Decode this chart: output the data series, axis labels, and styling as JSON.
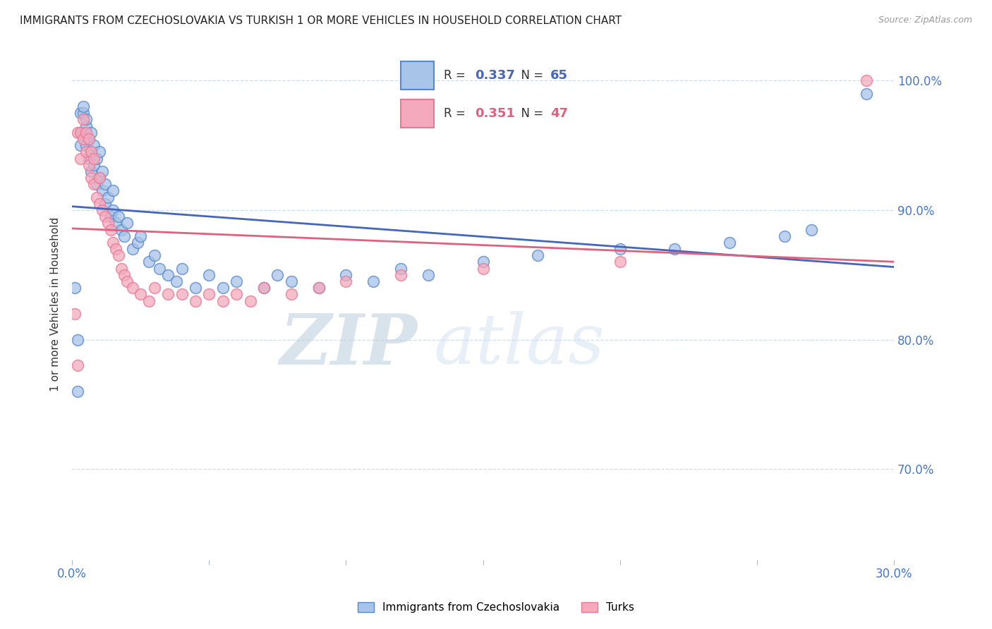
{
  "title": "IMMIGRANTS FROM CZECHOSLOVAKIA VS TURKISH 1 OR MORE VEHICLES IN HOUSEHOLD CORRELATION CHART",
  "source": "Source: ZipAtlas.com",
  "ylabel": "1 or more Vehicles in Household",
  "xlim": [
    0.0,
    0.3
  ],
  "ylim": [
    0.63,
    1.025
  ],
  "yticks": [
    0.7,
    0.8,
    0.9,
    1.0
  ],
  "yticklabels": [
    "70.0%",
    "80.0%",
    "90.0%",
    "100.0%"
  ],
  "xtick_positions": [
    0.0,
    0.05,
    0.1,
    0.15,
    0.2,
    0.25,
    0.3
  ],
  "xticklabels": [
    "0.0%",
    "",
    "",
    "",
    "",
    "",
    "30.0%"
  ],
  "blue_fill": "#A8C4E8",
  "blue_edge": "#5588CC",
  "blue_line": "#4466BB",
  "pink_fill": "#F4AABC",
  "pink_edge": "#E87898",
  "pink_line": "#E06080",
  "legend_blue_R": "0.337",
  "legend_blue_N": "65",
  "legend_pink_R": "0.351",
  "legend_pink_N": "47",
  "legend_label_blue": "Immigrants from Czechoslovakia",
  "legend_label_pink": "Turks",
  "watermark_zip": "ZIP",
  "watermark_atlas": "atlas",
  "tick_color": "#4477CC",
  "grid_color": "#CCDDEE",
  "blue_x": [
    0.001,
    0.002,
    0.002,
    0.003,
    0.003,
    0.003,
    0.004,
    0.004,
    0.004,
    0.005,
    0.005,
    0.005,
    0.006,
    0.006,
    0.007,
    0.007,
    0.007,
    0.008,
    0.008,
    0.009,
    0.009,
    0.01,
    0.01,
    0.011,
    0.011,
    0.012,
    0.012,
    0.013,
    0.014,
    0.015,
    0.015,
    0.016,
    0.017,
    0.018,
    0.019,
    0.02,
    0.022,
    0.024,
    0.025,
    0.028,
    0.03,
    0.032,
    0.035,
    0.038,
    0.04,
    0.045,
    0.05,
    0.055,
    0.06,
    0.07,
    0.075,
    0.08,
    0.09,
    0.1,
    0.11,
    0.12,
    0.13,
    0.15,
    0.17,
    0.2,
    0.22,
    0.24,
    0.26,
    0.27,
    0.29
  ],
  "blue_y": [
    0.84,
    0.76,
    0.8,
    0.95,
    0.96,
    0.975,
    0.96,
    0.975,
    0.98,
    0.95,
    0.965,
    0.97,
    0.94,
    0.955,
    0.93,
    0.945,
    0.96,
    0.935,
    0.95,
    0.92,
    0.94,
    0.925,
    0.945,
    0.915,
    0.93,
    0.905,
    0.92,
    0.91,
    0.895,
    0.9,
    0.915,
    0.89,
    0.895,
    0.885,
    0.88,
    0.89,
    0.87,
    0.875,
    0.88,
    0.86,
    0.865,
    0.855,
    0.85,
    0.845,
    0.855,
    0.84,
    0.85,
    0.84,
    0.845,
    0.84,
    0.85,
    0.845,
    0.84,
    0.85,
    0.845,
    0.855,
    0.85,
    0.86,
    0.865,
    0.87,
    0.87,
    0.875,
    0.88,
    0.885,
    0.99
  ],
  "pink_x": [
    0.001,
    0.002,
    0.002,
    0.003,
    0.003,
    0.004,
    0.004,
    0.005,
    0.005,
    0.006,
    0.006,
    0.007,
    0.007,
    0.008,
    0.008,
    0.009,
    0.01,
    0.01,
    0.011,
    0.012,
    0.013,
    0.014,
    0.015,
    0.016,
    0.017,
    0.018,
    0.019,
    0.02,
    0.022,
    0.025,
    0.028,
    0.03,
    0.035,
    0.04,
    0.045,
    0.05,
    0.055,
    0.06,
    0.065,
    0.07,
    0.08,
    0.09,
    0.1,
    0.12,
    0.15,
    0.2,
    0.29
  ],
  "pink_y": [
    0.82,
    0.78,
    0.96,
    0.94,
    0.96,
    0.955,
    0.97,
    0.945,
    0.96,
    0.935,
    0.955,
    0.925,
    0.945,
    0.92,
    0.94,
    0.91,
    0.905,
    0.925,
    0.9,
    0.895,
    0.89,
    0.885,
    0.875,
    0.87,
    0.865,
    0.855,
    0.85,
    0.845,
    0.84,
    0.835,
    0.83,
    0.84,
    0.835,
    0.835,
    0.83,
    0.835,
    0.83,
    0.835,
    0.83,
    0.84,
    0.835,
    0.84,
    0.845,
    0.85,
    0.855,
    0.86,
    1.0
  ]
}
